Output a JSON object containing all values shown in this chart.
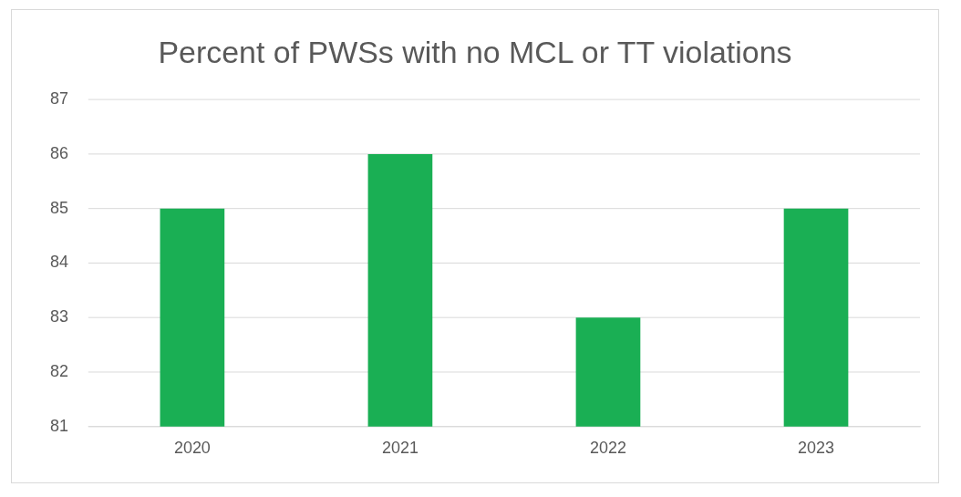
{
  "chart_data": {
    "type": "bar",
    "title": "Percent of PWSs with no MCL or TT violations",
    "categories": [
      "2020",
      "2021",
      "2022",
      "2023"
    ],
    "values": [
      85,
      86,
      83,
      85
    ],
    "color": "#1aaf54",
    "ylim": [
      81,
      87
    ],
    "yticks": [
      81,
      82,
      83,
      84,
      85,
      86,
      87
    ],
    "grid": "y",
    "legend": false
  }
}
